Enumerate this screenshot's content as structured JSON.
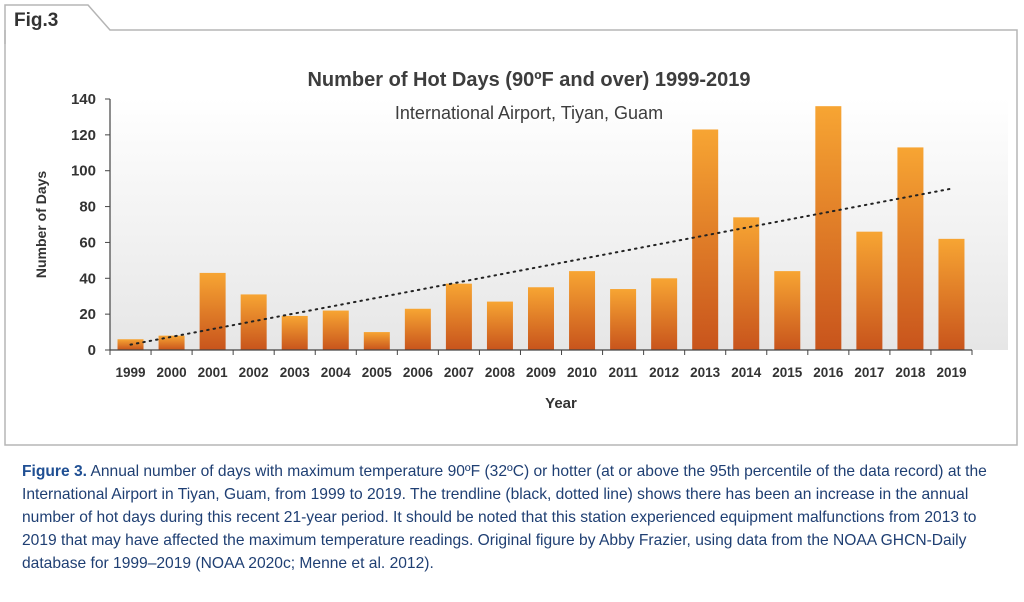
{
  "figure": {
    "tab_label": "Fig.3",
    "caption_lead": "Figure 3.",
    "caption_text": "Annual number of days with maximum temperature 90ºF (32ºC) or hotter (at or above the 95th percentile of the data record) at the International Airport in Tiyan, Guam, from 1999 to 2019. The trendline (black, dotted line) shows there has been an increase in the annual number of hot days during this recent 21-year period. It should be noted that this station experienced equipment malfunctions from 2013 to 2019 that may have affected the maximum temperature readings. Original figure by Abby Frazier, using data from the NOAA GHCN-Daily database for 1999–2019 (NOAA 2020c; Menne et al. 2012)."
  },
  "colors": {
    "bar_top": "#f7a533",
    "bar_bottom": "#c8541c",
    "plot_bg_top": "#ffffff",
    "plot_bg_bottom": "#e6e6e6",
    "trendline": "#222222",
    "caption": "#1f3f73",
    "caption_lead": "#1f4f93"
  },
  "chart_data": {
    "type": "bar",
    "title": "Number of Hot Days (90ºF and over) 1999-2019",
    "subtitle": "International Airport, Tiyan, Guam",
    "xlabel": "Year",
    "ylabel": "Number of Days",
    "categories": [
      "1999",
      "2000",
      "2001",
      "2002",
      "2003",
      "2004",
      "2005",
      "2006",
      "2007",
      "2008",
      "2009",
      "2010",
      "2011",
      "2012",
      "2013",
      "2014",
      "2015",
      "2016",
      "2017",
      "2018",
      "2019"
    ],
    "values": [
      6,
      8,
      43,
      31,
      19,
      22,
      10,
      23,
      37,
      27,
      35,
      44,
      34,
      40,
      123,
      74,
      44,
      136,
      66,
      113,
      62
    ],
    "ylim": [
      0,
      140
    ],
    "yticks": [
      0,
      20,
      40,
      60,
      80,
      100,
      120,
      140
    ],
    "trendline": {
      "style": "dotted",
      "start": 3,
      "end": 90
    },
    "grid": false,
    "legend": "none"
  }
}
